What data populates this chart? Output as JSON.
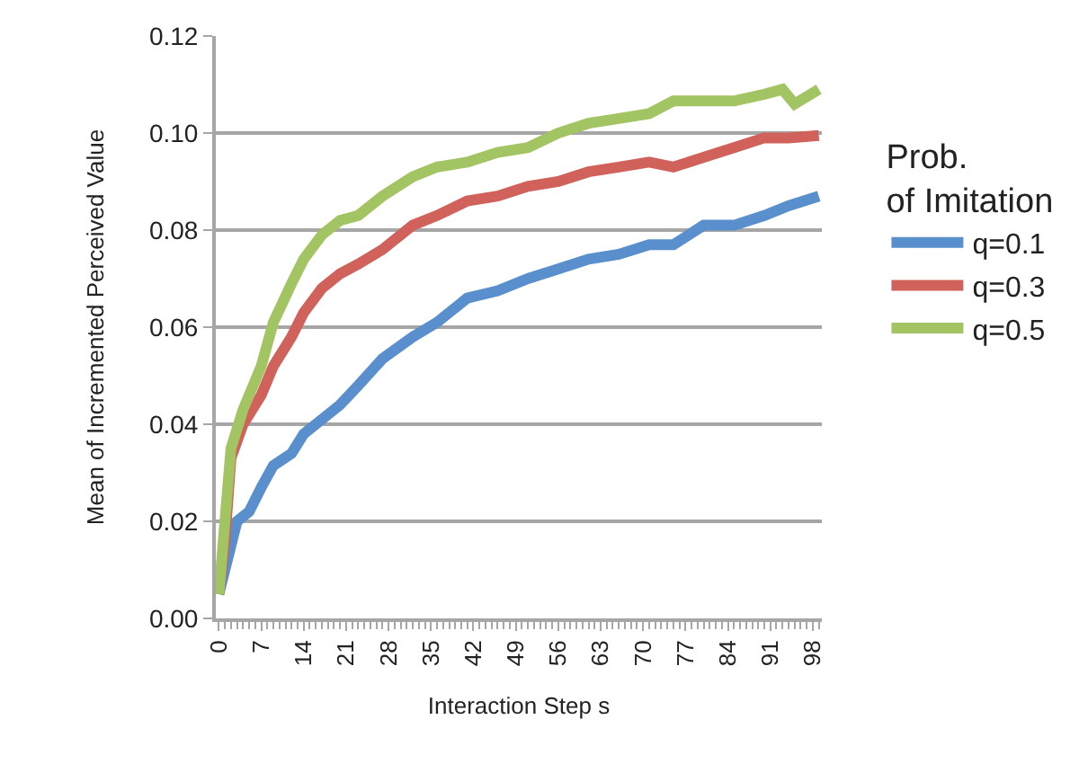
{
  "chart_data": {
    "type": "line",
    "xlabel": "Interaction Step s",
    "ylabel": "Mean of Incremented Perceived Value",
    "legend_title": "Prob.\nof Imitation",
    "xlim": [
      -0.5,
      99.5
    ],
    "xticks": [
      0,
      7,
      14,
      21,
      28,
      35,
      42,
      49,
      56,
      63,
      70,
      77,
      84,
      91,
      98
    ],
    "ylim": [
      0,
      0.12
    ],
    "yticks": [
      {
        "value": 0,
        "label": "0.00"
      },
      {
        "value": 0.02,
        "label": "0.02"
      },
      {
        "value": 0.04,
        "label": "0.04"
      },
      {
        "value": 0.06,
        "label": "0.06"
      },
      {
        "value": 0.08,
        "label": "0.08"
      },
      {
        "value": 0.1,
        "label": "0.10"
      },
      {
        "value": 0.12,
        "label": "0.12"
      }
    ],
    "grid": "y",
    "legend": "right",
    "marker": "none",
    "line_style": "solid",
    "series": [
      {
        "name": "q=0.1",
        "color": "#5a8fcd",
        "x": [
          0,
          2,
          3,
          5,
          7,
          9,
          12,
          14,
          17,
          20,
          23,
          27,
          32,
          36,
          41,
          46,
          51,
          56,
          61,
          66,
          71,
          75,
          80,
          85,
          90,
          94,
          99
        ],
        "values": [
          0.005,
          0.015,
          0.02,
          0.022,
          0.027,
          0.0315,
          0.034,
          0.038,
          0.041,
          0.044,
          0.048,
          0.0535,
          0.058,
          0.061,
          0.066,
          0.0675,
          0.07,
          0.072,
          0.074,
          0.075,
          0.077,
          0.077,
          0.081,
          0.081,
          0.083,
          0.085,
          0.087
        ]
      },
      {
        "name": "q=0.3",
        "color": "#d0625b",
        "x": [
          0,
          1,
          2,
          4,
          7,
          9,
          12,
          14,
          17,
          20,
          23,
          27,
          32,
          36,
          41,
          46,
          51,
          56,
          61,
          66,
          71,
          75,
          80,
          85,
          90,
          94,
          99
        ],
        "values": [
          0.005,
          0.016,
          0.033,
          0.04,
          0.046,
          0.052,
          0.058,
          0.063,
          0.068,
          0.071,
          0.073,
          0.076,
          0.081,
          0.083,
          0.086,
          0.087,
          0.089,
          0.09,
          0.092,
          0.093,
          0.094,
          0.093,
          0.095,
          0.097,
          0.099,
          0.099,
          0.0995
        ]
      },
      {
        "name": "q=0.5",
        "color": "#a3c462",
        "x": [
          0,
          2,
          4,
          7,
          9,
          12,
          14,
          17,
          20,
          23,
          27,
          32,
          36,
          41,
          46,
          51,
          56,
          61,
          66,
          71,
          75,
          80,
          85,
          90,
          93,
          95,
          99
        ],
        "values": [
          0.005,
          0.035,
          0.043,
          0.052,
          0.061,
          0.069,
          0.074,
          0.079,
          0.082,
          0.083,
          0.087,
          0.091,
          0.093,
          0.094,
          0.096,
          0.097,
          0.1,
          0.102,
          0.103,
          0.104,
          0.1066,
          0.1066,
          0.1066,
          0.108,
          0.109,
          0.106,
          0.109
        ]
      }
    ]
  }
}
